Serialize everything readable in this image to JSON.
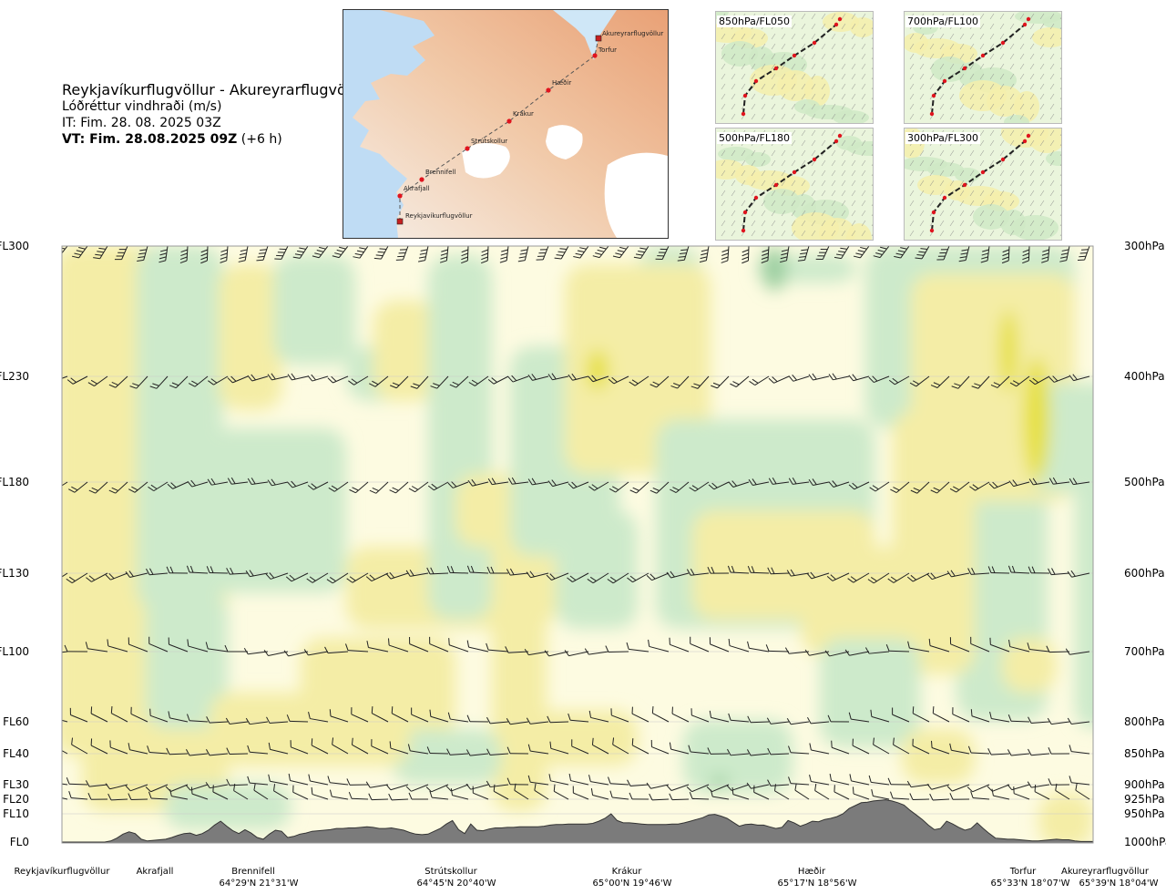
{
  "header": {
    "title": "Reykjavíkurflugvöllur - Akureyrarflugvöllur",
    "subtitle": "Lóðréttur vindhraði (m/s)",
    "issue_time": "IT: Fim. 28. 08. 2025 03Z",
    "valid_time_bold": "VT: Fim. 28.08.2025 09Z",
    "valid_time_offset": "(+6 h)"
  },
  "overview_map": {
    "points": [
      {
        "name": "Reykjavíkurflugvöllur",
        "type": "airport"
      },
      {
        "name": "Akrafjall",
        "type": "waypoint"
      },
      {
        "name": "Brennifell",
        "type": "waypoint"
      },
      {
        "name": "Strútskollur",
        "type": "waypoint"
      },
      {
        "name": "Krákur",
        "type": "waypoint"
      },
      {
        "name": "Hæðir",
        "type": "waypoint"
      },
      {
        "name": "Torfur",
        "type": "waypoint"
      },
      {
        "name": "Akureyrarflugvöllur",
        "type": "airport"
      }
    ]
  },
  "level_maps": [
    {
      "label": "850hPa/FL050"
    },
    {
      "label": "700hPa/FL100"
    },
    {
      "label": "500hPa/FL180"
    },
    {
      "label": "300hPa/FL300"
    }
  ],
  "chart_data": {
    "type": "heatmap",
    "variable": "vertical wind speed (m/s)",
    "colors": {
      "strong_positive": "#e6e040",
      "positive": "#f4eda6",
      "weak_positive": "#fdfbe1",
      "weak_negative": "#e9f5de",
      "negative": "#cdeacb",
      "strong_negative": "#9ccfa0",
      "terrain": "#7b7b7b"
    },
    "levels": [
      {
        "fl": "FL300",
        "hpa": "300hPa",
        "p": 300
      },
      {
        "fl": "FL230",
        "hpa": "400hPa",
        "p": 400
      },
      {
        "fl": "FL180",
        "hpa": "500hPa",
        "p": 500
      },
      {
        "fl": "FL130",
        "hpa": "600hPa",
        "p": 600
      },
      {
        "fl": "FL100",
        "hpa": "700hPa",
        "p": 700
      },
      {
        "fl": "FL60",
        "hpa": "800hPa",
        "p": 800
      },
      {
        "fl": "FL40",
        "hpa": "850hPa",
        "p": 850
      },
      {
        "fl": "FL30",
        "hpa": "900hPa",
        "p": 900
      },
      {
        "fl": "FL20",
        "hpa": "925hPa",
        "p": 925
      },
      {
        "fl": "FL10",
        "hpa": "950hPa",
        "p": 950
      },
      {
        "fl": "FL0",
        "hpa": "1000hPa",
        "p": 1000
      }
    ],
    "route_points": [
      {
        "name": "Reykjavíkurflugvöllur",
        "coord": ""
      },
      {
        "name": "Akrafjall",
        "coord": ""
      },
      {
        "name": "Brennifell",
        "coord": "64°29'N 21°31'W"
      },
      {
        "name": "Strútskollur",
        "coord": "64°45'N 20°40'W"
      },
      {
        "name": "Krákur",
        "coord": "65°00'N 19°46'W"
      },
      {
        "name": "Hæðir",
        "coord": "65°17'N 18°56'W"
      },
      {
        "name": "Torfur",
        "coord": "65°33'N 18°07'W"
      },
      {
        "name": "Akureyrarflugvöllur",
        "coord": "65°39'N 18°04'W"
      }
    ],
    "terrain_profile_hpa": [
      1000,
      1000,
      1000,
      1000,
      1000,
      1000,
      1000,
      1000,
      998,
      993,
      986,
      982,
      985,
      995,
      998,
      997,
      996,
      995,
      992,
      988,
      985,
      984,
      988,
      985,
      979,
      970,
      963,
      972,
      980,
      985,
      978,
      984,
      992,
      995,
      986,
      979,
      981,
      992,
      990,
      986,
      984,
      981,
      980,
      979,
      978,
      976,
      976,
      975,
      975,
      974,
      973,
      974,
      976,
      976,
      975,
      977,
      979,
      983,
      986,
      987,
      986,
      981,
      976,
      968,
      962,
      978,
      985,
      968,
      979,
      980,
      977,
      975,
      975,
      974,
      974,
      973,
      973,
      973,
      973,
      972,
      970,
      969,
      969,
      968,
      968,
      968,
      968,
      967,
      963,
      958,
      950,
      962,
      966,
      966,
      967,
      968,
      969,
      969,
      969,
      969,
      968,
      968,
      966,
      963,
      960,
      957,
      952,
      951,
      954,
      958,
      965,
      972,
      969,
      968,
      970,
      970,
      973,
      976,
      974,
      962,
      966,
      972,
      968,
      963,
      964,
      960,
      958,
      955,
      950,
      941,
      936,
      931,
      930,
      928,
      927,
      926,
      928,
      931,
      935,
      944,
      952,
      960,
      970,
      978,
      976,
      963,
      968,
      974,
      979,
      976,
      966,
      976,
      985,
      993,
      994,
      995,
      995,
      996,
      997,
      998,
      998,
      997,
      996,
      995,
      996,
      996,
      998,
      999,
      999,
      999
    ]
  },
  "logo_text": ""
}
